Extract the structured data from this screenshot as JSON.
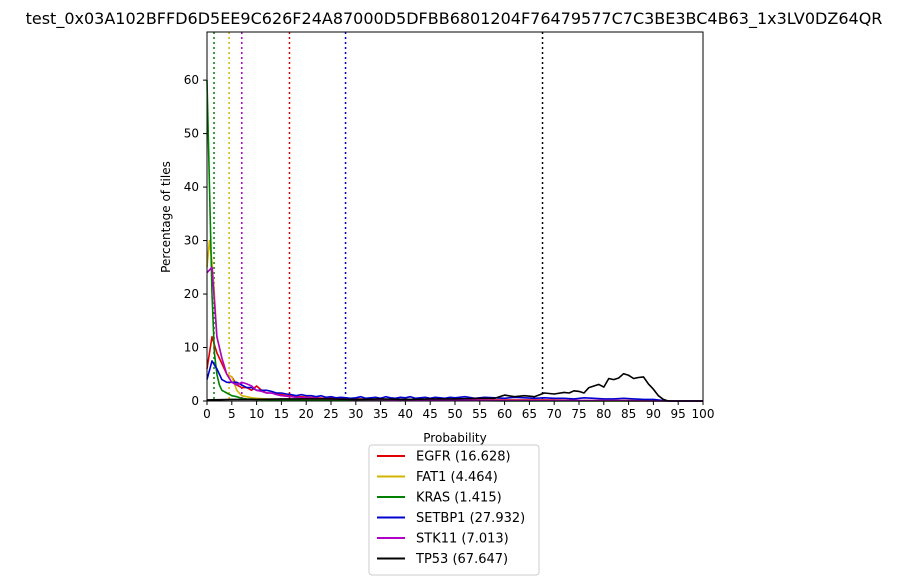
{
  "chart_data": {
    "type": "line",
    "title": "test_0x03A102BFFD6D5EE9C626F24A87000D5DFBB6801204F76479577C7C3BE3BC4B63_1x3LV0DZ64QR",
    "xlabel": "Probability",
    "ylabel": "Percentage of tiles",
    "xlim": [
      0,
      100
    ],
    "ylim": [
      0,
      69
    ],
    "x_ticks": [
      "0",
      "5",
      "10",
      "15",
      "20",
      "25",
      "30",
      "35",
      "40",
      "45",
      "50",
      "55",
      "60",
      "65",
      "70",
      "75",
      "80",
      "85",
      "90",
      "95",
      "100"
    ],
    "y_ticks": [
      "0",
      "10",
      "20",
      "30",
      "40",
      "50",
      "60"
    ],
    "grid": false,
    "legend_position": "below",
    "series": [
      {
        "name": "EGFR (16.628)",
        "color": "#e00000",
        "threshold": 16.628,
        "x": [
          0,
          1,
          2,
          3,
          4,
          5,
          6,
          7,
          8,
          9,
          10,
          11,
          12,
          13,
          14,
          15,
          16,
          17,
          18,
          19,
          20,
          22,
          24,
          26,
          28,
          30,
          35,
          40,
          45,
          50,
          55,
          60,
          65,
          70,
          75,
          80,
          85,
          90,
          93,
          95,
          100
        ],
        "y": [
          6,
          12,
          9,
          7,
          5,
          4.5,
          3,
          2.5,
          2.5,
          2,
          2.8,
          2,
          1.5,
          1.5,
          1.3,
          1.2,
          1,
          1,
          0.8,
          0.8,
          0.7,
          0.6,
          0.5,
          0.5,
          0.4,
          0.4,
          0.3,
          0.3,
          0.3,
          0.3,
          0.2,
          0.2,
          0.2,
          0.2,
          0.1,
          0.1,
          0.1,
          0.1,
          0,
          0,
          0
        ]
      },
      {
        "name": "FAT1 (4.464)",
        "color": "#d4b400",
        "threshold": 4.464,
        "x": [
          0,
          0.5,
          1,
          1.5,
          2,
          3,
          4,
          5,
          6,
          7,
          8,
          9,
          10,
          12,
          15,
          20,
          25,
          30,
          35,
          40,
          50,
          60,
          70,
          80,
          90,
          93,
          95,
          100
        ],
        "y": [
          25,
          30,
          26,
          20,
          12,
          8,
          5,
          4.5,
          2,
          1,
          0.8,
          0.6,
          0.5,
          0.4,
          0.3,
          0.3,
          0.2,
          0.2,
          0.2,
          0.1,
          0.1,
          0.1,
          0.1,
          0,
          0,
          0,
          0,
          0
        ]
      },
      {
        "name": "KRAS (1.415)",
        "color": "#008000",
        "threshold": 1.415,
        "x": [
          0,
          0.5,
          1,
          1.5,
          2,
          2.5,
          3,
          4,
          5,
          6,
          7,
          8,
          10,
          15,
          20,
          30,
          40,
          50,
          60,
          70,
          80,
          90,
          93,
          95,
          100
        ],
        "y": [
          60,
          40,
          20,
          9,
          5,
          3,
          2,
          1.5,
          1,
          0.8,
          0.5,
          0.4,
          0.3,
          0.2,
          0.1,
          0.1,
          0.1,
          0.1,
          0,
          0,
          0,
          0,
          0,
          0,
          0
        ]
      },
      {
        "name": "SETBP1 (27.932)",
        "color": "#0000d0",
        "threshold": 27.932,
        "x": [
          0,
          1,
          2,
          3,
          4,
          5,
          6,
          7,
          8,
          9,
          10,
          11,
          12,
          13,
          14,
          15,
          16,
          17,
          18,
          19,
          20,
          21,
          22,
          23,
          24,
          25,
          26,
          27,
          28,
          29,
          30,
          31,
          32,
          33,
          34,
          35,
          36,
          37,
          38,
          39,
          40,
          41,
          42,
          43,
          44,
          45,
          46,
          47,
          48,
          49,
          50,
          52,
          54,
          56,
          58,
          60,
          62,
          64,
          66,
          68,
          70,
          72,
          74,
          76,
          78,
          80,
          82,
          84,
          86,
          88,
          90,
          92,
          93,
          95,
          100
        ],
        "y": [
          4,
          7.5,
          6,
          4,
          3.5,
          3.5,
          3.5,
          3,
          2.5,
          2.5,
          2,
          2,
          2,
          1.8,
          1.5,
          1.5,
          1.3,
          1.2,
          1,
          1.2,
          1,
          1,
          0.8,
          1,
          0.7,
          0.8,
          0.6,
          0.7,
          0.6,
          0.5,
          0.6,
          0.8,
          0.5,
          0.6,
          0.7,
          0.5,
          0.8,
          0.6,
          0.5,
          0.7,
          0.6,
          0.8,
          0.5,
          0.6,
          0.7,
          0.5,
          0.7,
          0.6,
          0.5,
          0.7,
          0.6,
          0.8,
          0.5,
          0.7,
          0.6,
          0.5,
          0.7,
          0.6,
          0.5,
          0.6,
          0.5,
          0.5,
          0.4,
          0.6,
          0.5,
          0.4,
          0.4,
          0.5,
          0.4,
          0.3,
          0.3,
          0.1,
          0,
          0,
          0
        ]
      },
      {
        "name": "STK11 (7.013)",
        "color": "#b000c8",
        "threshold": 7.013,
        "x": [
          0,
          1,
          2,
          3,
          4,
          5,
          6,
          7,
          8,
          9,
          10,
          11,
          12,
          13,
          14,
          15,
          16,
          17,
          18,
          20,
          22,
          25,
          30,
          35,
          40,
          50,
          60,
          70,
          80,
          90,
          93,
          95,
          100
        ],
        "y": [
          24,
          25,
          12,
          8,
          5,
          3.5,
          3,
          3.5,
          3.2,
          2.8,
          2,
          1.8,
          1.5,
          1.5,
          1.2,
          1,
          0.9,
          0.8,
          0.7,
          0.6,
          0.5,
          0.4,
          0.3,
          0.3,
          0.2,
          0.2,
          0.1,
          0.1,
          0.1,
          0,
          0,
          0,
          0
        ]
      },
      {
        "name": "TP53 (67.647)",
        "color": "#000000",
        "threshold": 67.647,
        "x": [
          0,
          5,
          10,
          15,
          20,
          25,
          30,
          35,
          40,
          45,
          50,
          55,
          58,
          60,
          62,
          64,
          66,
          68,
          70,
          72,
          73,
          74,
          75,
          76,
          77,
          78,
          79,
          80,
          81,
          82,
          83,
          84,
          85,
          86,
          87,
          88,
          89,
          90,
          91,
          92,
          93,
          95,
          100
        ],
        "y": [
          0.2,
          0.3,
          0.3,
          0.4,
          0.4,
          0.4,
          0.3,
          0.4,
          0.3,
          0.4,
          0.4,
          0.5,
          0.5,
          1.1,
          0.8,
          1,
          0.8,
          1.5,
          1.3,
          1.6,
          1.5,
          1.9,
          1.8,
          1.5,
          2.5,
          2.8,
          3.1,
          2.6,
          4.2,
          4,
          4.3,
          5.1,
          4.8,
          4.2,
          4.4,
          4.5,
          3.2,
          2.2,
          1,
          0.3,
          0,
          0,
          0
        ]
      }
    ]
  }
}
